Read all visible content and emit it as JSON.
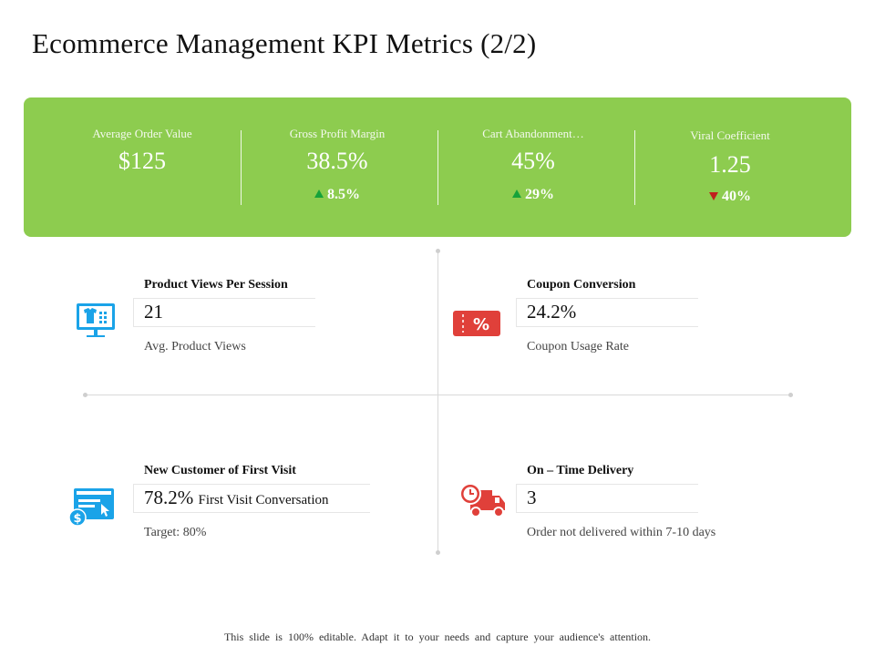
{
  "title": "Ecommerce Management KPI Metrics (2/2)",
  "kpis": [
    {
      "label": "Average Order Value",
      "value": "$125",
      "delta": ""
    },
    {
      "label": "Gross Profit Margin",
      "value": "38.5%",
      "delta": "8.5%",
      "trend": "up"
    },
    {
      "label": "Cart Abandonment…",
      "value": "45%",
      "delta": "29%",
      "trend": "up"
    },
    {
      "label": "Viral Coefficient",
      "value": "1.25",
      "delta": "40%",
      "trend": "down"
    }
  ],
  "metrics": {
    "product_views": {
      "title": "Product Views Per Session",
      "value": "21",
      "subtitle": "Avg. Product Views"
    },
    "coupon": {
      "title": "Coupon Conversion",
      "value": "24.2%",
      "subtitle": "Coupon Usage Rate"
    },
    "new_customer": {
      "title": "New Customer of First Visit",
      "value": "78.2%",
      "value_suffix": "First Visit Conversation",
      "subtitle": "Target: 80%"
    },
    "delivery": {
      "title": "On – Time Delivery",
      "value": "3",
      "subtitle": "Order not delivered within 7-10 days"
    }
  },
  "footer": "This slide is 100% editable. Adapt it to your needs and capture your audience's attention.",
  "colors": {
    "banner": "#8dcc4f",
    "up": "#16a23a",
    "down": "#c0201e",
    "blue_icon": "#1aa3e8",
    "red_icon": "#e0403a"
  }
}
